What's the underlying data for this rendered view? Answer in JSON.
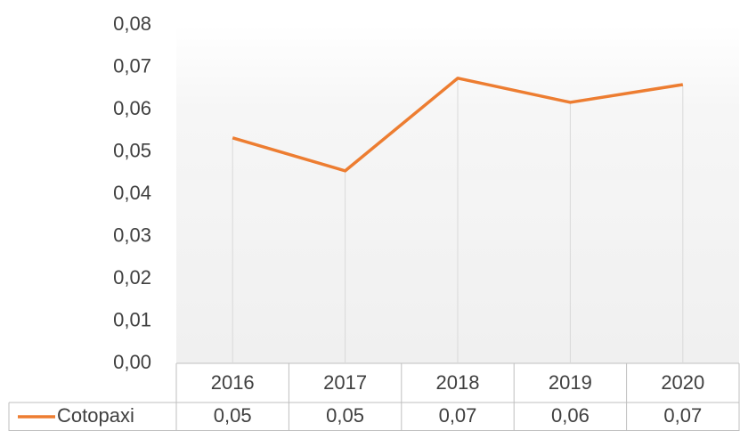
{
  "chart_data": {
    "type": "line",
    "categories": [
      "2016",
      "2017",
      "2018",
      "2019",
      "2020"
    ],
    "series": [
      {
        "name": "Cotopaxi",
        "color": "#ed7d31",
        "values": [
          0.0533,
          0.0455,
          0.0674,
          0.0617,
          0.0659
        ],
        "value_labels": [
          "0,05",
          "0,05",
          "0,07",
          "0,06",
          "0,07"
        ]
      }
    ],
    "ylim": [
      0,
      0.08
    ],
    "yticks": [
      {
        "value": 0,
        "label": "0,00"
      },
      {
        "value": 0.01,
        "label": "0,01"
      },
      {
        "value": 0.02,
        "label": "0,02"
      },
      {
        "value": 0.03,
        "label": "0,03"
      },
      {
        "value": 0.04,
        "label": "0,04"
      },
      {
        "value": 0.05,
        "label": "0,05"
      },
      {
        "value": 0.06,
        "label": "0,06"
      },
      {
        "value": 0.07,
        "label": "0,07"
      },
      {
        "value": 0.08,
        "label": "0,08"
      }
    ],
    "drop_lines": true,
    "data_table": true
  }
}
